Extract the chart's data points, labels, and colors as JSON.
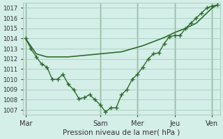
{
  "title": "Pression niveau de la mer( hPa )",
  "bg_color": "#d4eee8",
  "grid_color": "#aaccbb",
  "line_color": "#2d6b2d",
  "vline_color": "#2d6b2d",
  "ylim": [
    1006.5,
    1017.5
  ],
  "yticks": [
    1007,
    1008,
    1009,
    1010,
    1011,
    1012,
    1013,
    1014,
    1015,
    1016,
    1017
  ],
  "x_day_labels": [
    "Mar",
    "Sam",
    "Mer",
    "Jeu",
    "Ven"
  ],
  "x_day_positions": [
    0,
    14,
    21,
    28,
    35
  ],
  "xlim": [
    -0.5,
    36.5
  ],
  "smooth_x": [
    0,
    2,
    4,
    6,
    8,
    10,
    12,
    14,
    16,
    18,
    20,
    22,
    24,
    26,
    28,
    30,
    32,
    33,
    34,
    35,
    36
  ],
  "smooth_y": [
    1014.0,
    1012.5,
    1012.2,
    1012.2,
    1012.2,
    1012.3,
    1012.4,
    1012.5,
    1012.6,
    1012.7,
    1013.0,
    1013.3,
    1013.7,
    1014.1,
    1014.6,
    1015.0,
    1015.5,
    1016.0,
    1016.5,
    1017.0,
    1017.3
  ],
  "data_x": [
    0,
    1,
    2,
    3,
    4,
    5,
    6,
    7,
    8,
    9,
    10,
    11,
    12,
    13,
    14,
    15,
    16,
    17,
    18,
    19,
    20,
    21,
    22,
    23,
    24,
    25,
    26,
    27,
    28,
    29,
    30,
    31,
    32,
    33,
    34,
    35,
    36
  ],
  "data_y": [
    1014.0,
    1013.0,
    1012.2,
    1011.5,
    1011.2,
    1010.0,
    1010.0,
    1010.5,
    1009.5,
    1009.0,
    1008.1,
    1008.2,
    1008.5,
    1008.0,
    1007.5,
    1006.8,
    1007.2,
    1007.2,
    1008.5,
    1009.0,
    1010.0,
    1010.5,
    1011.2,
    1012.0,
    1012.5,
    1012.6,
    1013.5,
    1014.2,
    1014.3,
    1014.3,
    1015.0,
    1015.5,
    1016.0,
    1016.5,
    1017.0,
    1017.2,
    1017.3
  ]
}
